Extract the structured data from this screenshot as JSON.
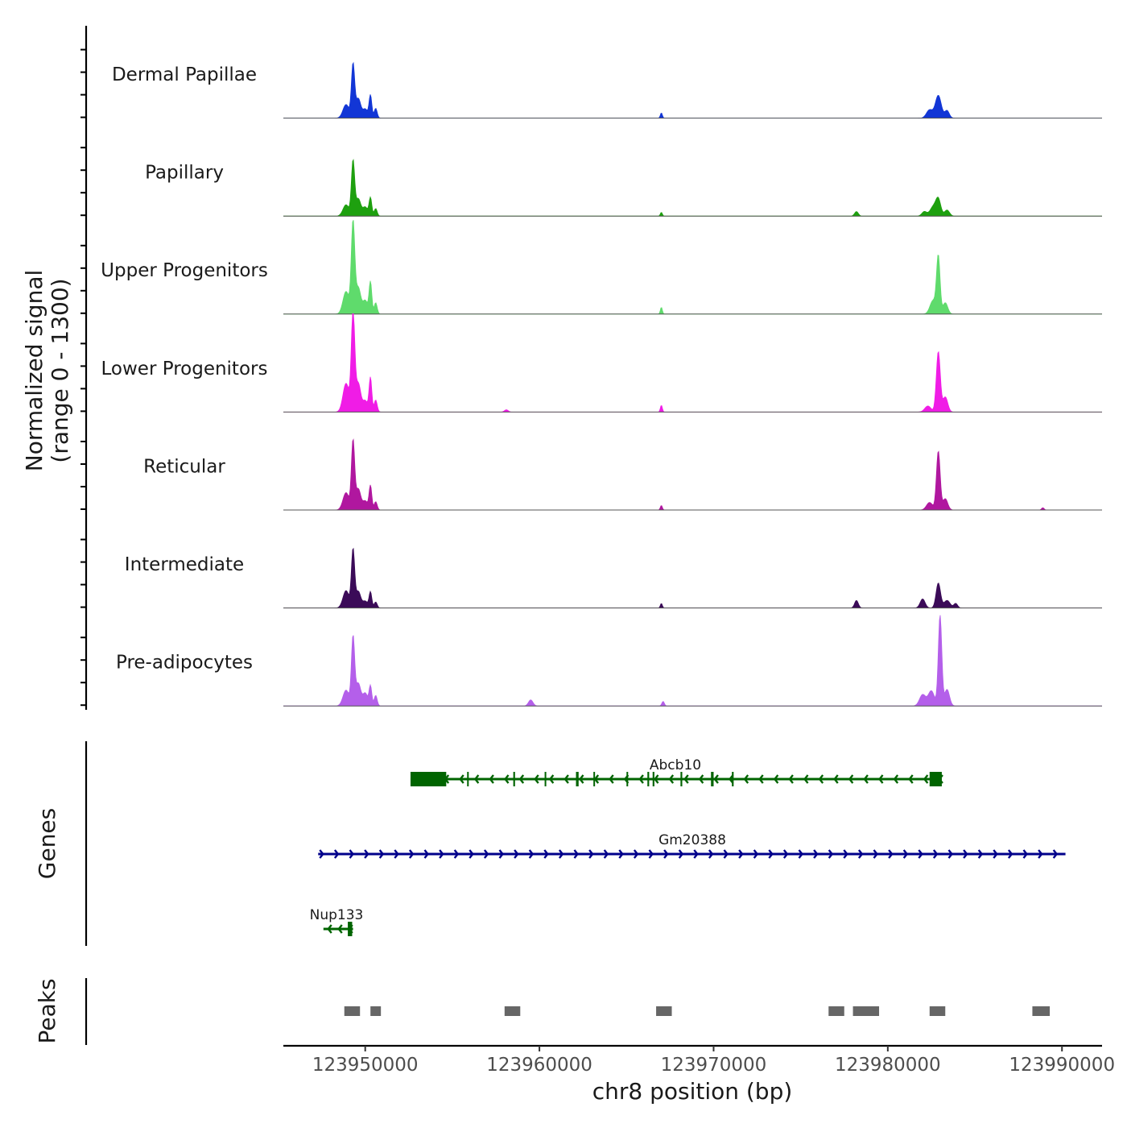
{
  "chart_data": {
    "type": "genome-coverage",
    "chromosome": "chr8",
    "x_axis_label": "chr8 position (bp)",
    "xlim": [
      123945300,
      123992300
    ],
    "x_ticks": [
      123950000,
      123960000,
      123970000,
      123980000,
      123990000
    ],
    "x_tick_labels": [
      "123950000",
      "123960000",
      "123970000",
      "123980000",
      "123990000"
    ],
    "coverage_ylabel_line1": "Normalized signal",
    "coverage_ylabel_line2": "(range 0 - 1300)",
    "y_range": [
      0,
      1300
    ],
    "tracks": [
      {
        "name": "Dermal Papillae",
        "color": "#1236d6",
        "peaks": [
          {
            "pos": 123948900,
            "h": 180,
            "w": 250
          },
          {
            "pos": 123949300,
            "h": 700,
            "w": 130
          },
          {
            "pos": 123949600,
            "h": 260,
            "w": 200
          },
          {
            "pos": 123950000,
            "h": 120,
            "w": 200
          },
          {
            "pos": 123950300,
            "h": 300,
            "w": 110
          },
          {
            "pos": 123950600,
            "h": 130,
            "w": 120
          },
          {
            "pos": 123967000,
            "h": 70,
            "w": 80
          },
          {
            "pos": 123982400,
            "h": 110,
            "w": 250
          },
          {
            "pos": 123982900,
            "h": 300,
            "w": 240
          },
          {
            "pos": 123983400,
            "h": 100,
            "w": 180
          }
        ]
      },
      {
        "name": "Papillary",
        "color": "#1ea00f",
        "peaks": [
          {
            "pos": 123948900,
            "h": 150,
            "w": 250
          },
          {
            "pos": 123949300,
            "h": 720,
            "w": 130
          },
          {
            "pos": 123949600,
            "h": 230,
            "w": 200
          },
          {
            "pos": 123950000,
            "h": 120,
            "w": 200
          },
          {
            "pos": 123950300,
            "h": 240,
            "w": 110
          },
          {
            "pos": 123950600,
            "h": 100,
            "w": 120
          },
          {
            "pos": 123967000,
            "h": 50,
            "w": 80
          },
          {
            "pos": 123978200,
            "h": 60,
            "w": 150
          },
          {
            "pos": 123982100,
            "h": 60,
            "w": 200
          },
          {
            "pos": 123982600,
            "h": 120,
            "w": 250
          },
          {
            "pos": 123982900,
            "h": 220,
            "w": 200
          },
          {
            "pos": 123983400,
            "h": 80,
            "w": 200
          }
        ]
      },
      {
        "name": "Upper Progenitors",
        "color": "#5fdb6c",
        "peaks": [
          {
            "pos": 123948900,
            "h": 300,
            "w": 250
          },
          {
            "pos": 123949300,
            "h": 1200,
            "w": 140
          },
          {
            "pos": 123949600,
            "h": 350,
            "w": 200
          },
          {
            "pos": 123950000,
            "h": 180,
            "w": 200
          },
          {
            "pos": 123950300,
            "h": 420,
            "w": 110
          },
          {
            "pos": 123950600,
            "h": 150,
            "w": 120
          },
          {
            "pos": 123967000,
            "h": 90,
            "w": 80
          },
          {
            "pos": 123982600,
            "h": 180,
            "w": 250
          },
          {
            "pos": 123982900,
            "h": 750,
            "w": 140
          },
          {
            "pos": 123983300,
            "h": 150,
            "w": 200
          }
        ]
      },
      {
        "name": "Lower Progenitors",
        "color": "#f01ce6",
        "peaks": [
          {
            "pos": 123948900,
            "h": 380,
            "w": 250
          },
          {
            "pos": 123949300,
            "h": 1300,
            "w": 140
          },
          {
            "pos": 123949600,
            "h": 380,
            "w": 200
          },
          {
            "pos": 123950000,
            "h": 150,
            "w": 200
          },
          {
            "pos": 123950300,
            "h": 450,
            "w": 110
          },
          {
            "pos": 123950600,
            "h": 160,
            "w": 120
          },
          {
            "pos": 123958100,
            "h": 30,
            "w": 150
          },
          {
            "pos": 123967000,
            "h": 90,
            "w": 80
          },
          {
            "pos": 123982300,
            "h": 80,
            "w": 250
          },
          {
            "pos": 123982900,
            "h": 800,
            "w": 160
          },
          {
            "pos": 123983300,
            "h": 200,
            "w": 200
          }
        ]
      },
      {
        "name": "Reticular",
        "color": "#b0179f",
        "peaks": [
          {
            "pos": 123948900,
            "h": 230,
            "w": 250
          },
          {
            "pos": 123949300,
            "h": 900,
            "w": 130
          },
          {
            "pos": 123949600,
            "h": 280,
            "w": 200
          },
          {
            "pos": 123950000,
            "h": 120,
            "w": 200
          },
          {
            "pos": 123950300,
            "h": 320,
            "w": 110
          },
          {
            "pos": 123950600,
            "h": 110,
            "w": 120
          },
          {
            "pos": 123967000,
            "h": 60,
            "w": 80
          },
          {
            "pos": 123982400,
            "h": 100,
            "w": 250
          },
          {
            "pos": 123982900,
            "h": 780,
            "w": 150
          },
          {
            "pos": 123983300,
            "h": 150,
            "w": 200
          },
          {
            "pos": 123988900,
            "h": 30,
            "w": 100
          }
        ]
      },
      {
        "name": "Intermediate",
        "color": "#3b0b58",
        "peaks": [
          {
            "pos": 123948900,
            "h": 230,
            "w": 250
          },
          {
            "pos": 123949300,
            "h": 760,
            "w": 130
          },
          {
            "pos": 123949600,
            "h": 220,
            "w": 200
          },
          {
            "pos": 123950000,
            "h": 90,
            "w": 200
          },
          {
            "pos": 123950300,
            "h": 210,
            "w": 110
          },
          {
            "pos": 123950600,
            "h": 80,
            "w": 120
          },
          {
            "pos": 123967000,
            "h": 60,
            "w": 80
          },
          {
            "pos": 123978200,
            "h": 100,
            "w": 150
          },
          {
            "pos": 123982000,
            "h": 120,
            "w": 200
          },
          {
            "pos": 123982900,
            "h": 330,
            "w": 180
          },
          {
            "pos": 123983400,
            "h": 100,
            "w": 250
          },
          {
            "pos": 123983900,
            "h": 60,
            "w": 150
          }
        ]
      },
      {
        "name": "Pre-adipocytes",
        "color": "#b45fea",
        "peaks": [
          {
            "pos": 123948900,
            "h": 210,
            "w": 250
          },
          {
            "pos": 123949300,
            "h": 900,
            "w": 130
          },
          {
            "pos": 123949600,
            "h": 300,
            "w": 200
          },
          {
            "pos": 123950000,
            "h": 170,
            "w": 200
          },
          {
            "pos": 123950300,
            "h": 260,
            "w": 110
          },
          {
            "pos": 123950600,
            "h": 140,
            "w": 120
          },
          {
            "pos": 123959500,
            "h": 80,
            "w": 180
          },
          {
            "pos": 123967100,
            "h": 60,
            "w": 100
          },
          {
            "pos": 123982000,
            "h": 150,
            "w": 250
          },
          {
            "pos": 123982500,
            "h": 200,
            "w": 250
          },
          {
            "pos": 123983000,
            "h": 1200,
            "w": 140
          },
          {
            "pos": 123983400,
            "h": 220,
            "w": 200
          }
        ]
      }
    ],
    "genes_axis_label": "Genes",
    "genes": [
      {
        "name": "Abcb10",
        "start": 123952600,
        "end": 123983100,
        "strand": "-",
        "color": "#006400",
        "exons": [
          [
            123952600,
            123954650
          ],
          [
            123955850,
            123955900
          ],
          [
            123958500,
            123958600
          ],
          [
            123960300,
            123960380
          ],
          [
            123962100,
            123962250
          ],
          [
            123963100,
            123963180
          ],
          [
            123965000,
            123965080
          ],
          [
            123966200,
            123966300
          ],
          [
            123966500,
            123966600
          ],
          [
            123968100,
            123968200
          ],
          [
            123969850,
            123970000
          ],
          [
            123971050,
            123971150
          ],
          [
            123982400,
            123983100
          ]
        ]
      },
      {
        "name": "Gm20388",
        "start": 123947300,
        "end": 123990200,
        "strand": "+",
        "color": "#00008b",
        "exons": []
      },
      {
        "name": "Nup133",
        "start": 123947600,
        "end": 123949300,
        "strand": "-",
        "color": "#006400",
        "exons": [
          [
            123949000,
            123949250
          ]
        ]
      }
    ],
    "peaks_axis_label": "Peaks",
    "peak_regions": [
      [
        123948800,
        123949700
      ],
      [
        123950300,
        123950900
      ],
      [
        123958000,
        123958900
      ],
      [
        123966700,
        123967600
      ],
      [
        123976600,
        123977500
      ],
      [
        123978000,
        123979500
      ],
      [
        123982400,
        123983300
      ],
      [
        123988300,
        123989300
      ]
    ]
  }
}
